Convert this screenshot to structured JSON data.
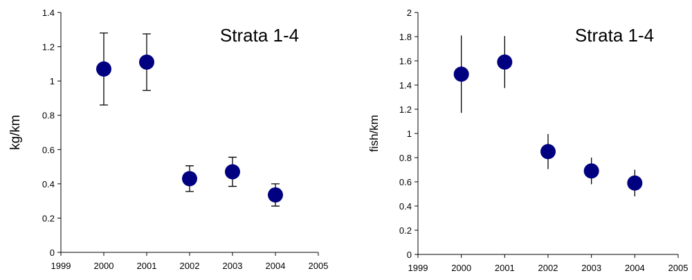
{
  "chart_data": [
    {
      "type": "scatter",
      "annotation": "Strata 1-4",
      "y_label": "kg/km",
      "x": [
        2000,
        2001,
        2002,
        2003,
        2004
      ],
      "values": [
        1.07,
        1.11,
        0.43,
        0.47,
        0.335
      ],
      "errors": [
        0.21,
        0.165,
        0.075,
        0.085,
        0.065
      ],
      "xlim": [
        1999,
        2005
      ],
      "xticks": [
        1999,
        2000,
        2001,
        2002,
        2003,
        2004,
        2005
      ],
      "ylim": [
        0,
        1.4
      ],
      "yticks": [
        0,
        0.2,
        0.4,
        0.6,
        0.8,
        1,
        1.2,
        1.4
      ],
      "color": "#000080",
      "error_caps": true
    },
    {
      "type": "scatter",
      "annotation": "Strata 1-4",
      "y_label": "fish/km",
      "x": [
        2000,
        2001,
        2002,
        2003,
        2004
      ],
      "values": [
        1.49,
        1.59,
        0.85,
        0.69,
        0.59
      ],
      "errors": [
        0.32,
        0.215,
        0.145,
        0.11,
        0.11
      ],
      "xlim": [
        1999,
        2005
      ],
      "xticks": [
        1999,
        2000,
        2001,
        2002,
        2003,
        2004,
        2005
      ],
      "ylim": [
        0,
        2
      ],
      "yticks": [
        0,
        0.2,
        0.4,
        0.6,
        0.8,
        1,
        1.2,
        1.4,
        1.6,
        1.8,
        2
      ],
      "color": "#000080",
      "error_caps": false
    }
  ]
}
